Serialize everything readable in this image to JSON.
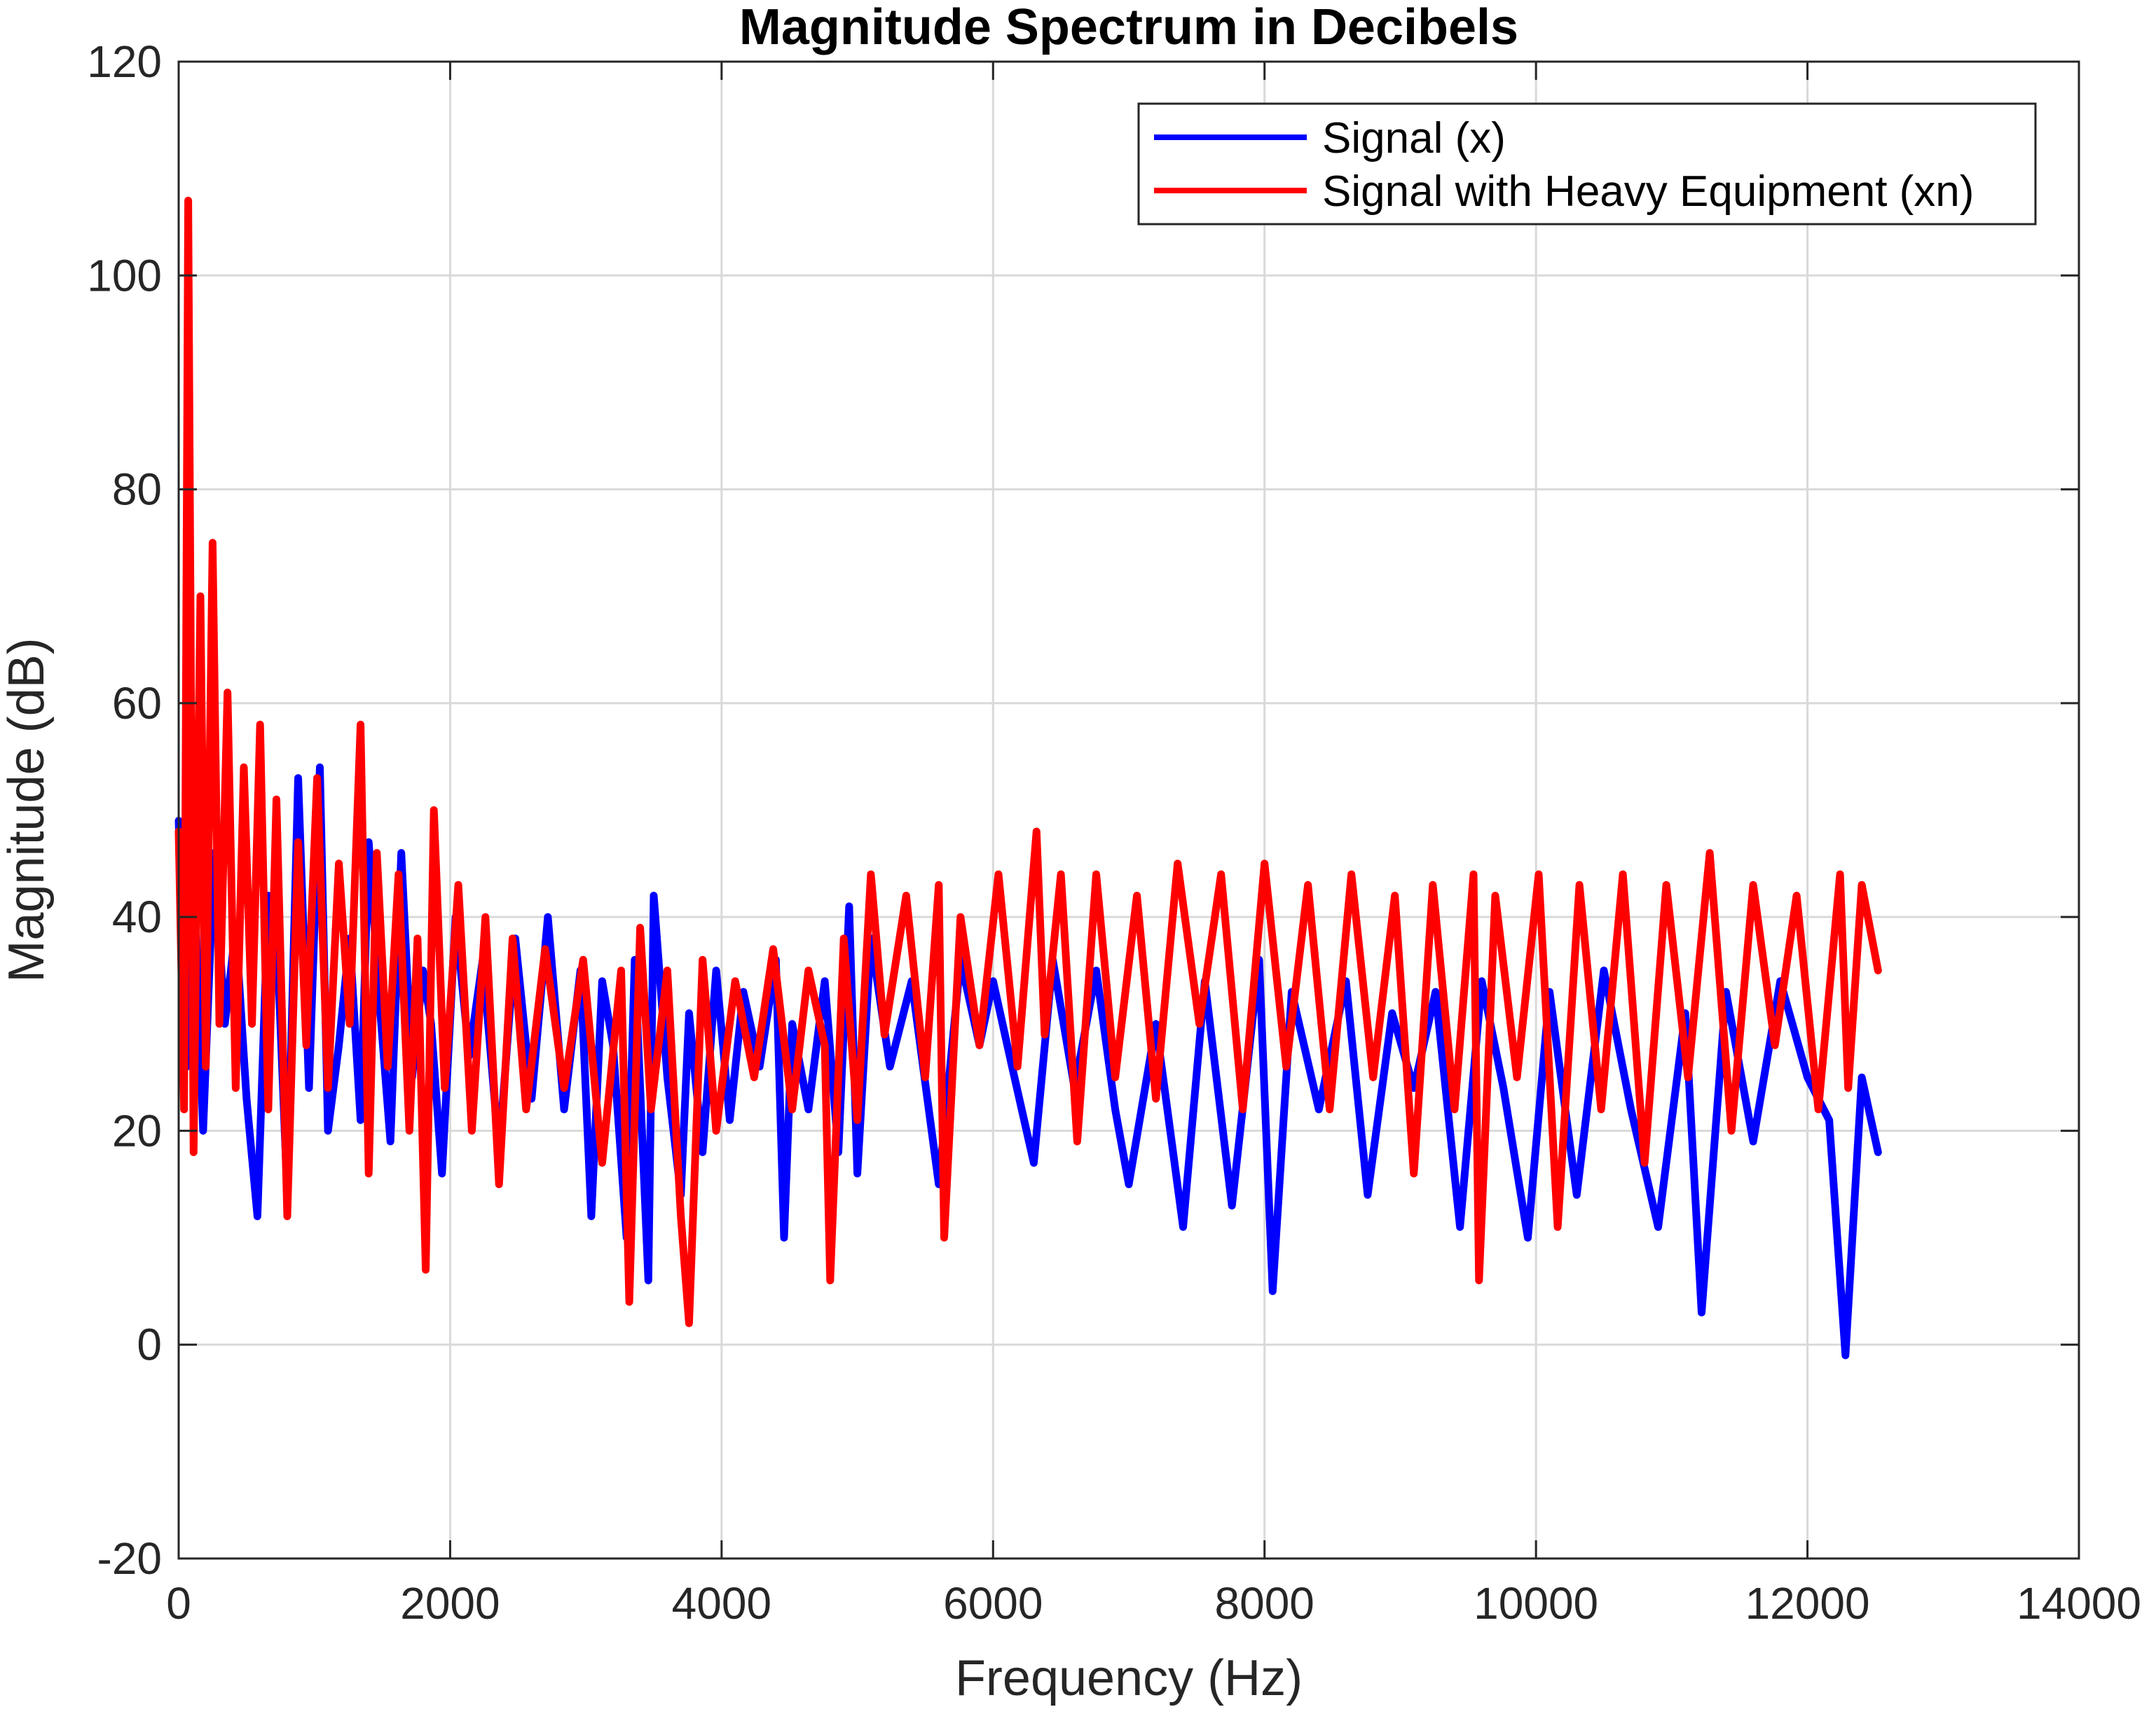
{
  "chart_data": {
    "type": "line",
    "title": "Magnitude Spectrum in Decibels",
    "xlabel": "Frequency (Hz)",
    "ylabel": "Magnitude (dB)",
    "xlim": [
      0,
      14000
    ],
    "ylim": [
      -20,
      120
    ],
    "x_ticks": [
      "0",
      "2000",
      "4000",
      "6000",
      "8000",
      "10000",
      "12000",
      "14000"
    ],
    "y_ticks": [
      "-20",
      "0",
      "20",
      "40",
      "60",
      "80",
      "100",
      "120"
    ],
    "grid": true,
    "legend_position": "top-right",
    "series": [
      {
        "name": "Signal (x)",
        "color": "#0000ff",
        "x": [
          0,
          60,
          120,
          180,
          260,
          340,
          420,
          500,
          580,
          660,
          740,
          800,
          880,
          960,
          1040,
          1100,
          1180,
          1260,
          1340,
          1400,
          1480,
          1560,
          1640,
          1720,
          1800,
          1860,
          1940,
          2040,
          2140,
          2240,
          2360,
          2480,
          2600,
          2720,
          2840,
          2960,
          3040,
          3120,
          3200,
          3300,
          3360,
          3460,
          3500,
          3600,
          3700,
          3760,
          3860,
          3960,
          4060,
          4160,
          4280,
          4400,
          4460,
          4520,
          4640,
          4760,
          4860,
          4940,
          5000,
          5100,
          5240,
          5400,
          5600,
          5760,
          5900,
          6000,
          6140,
          6300,
          6440,
          6600,
          6760,
          6900,
          7000,
          7200,
          7400,
          7560,
          7760,
          7960,
          8060,
          8200,
          8400,
          8600,
          8760,
          8940,
          9100,
          9260,
          9440,
          9600,
          9760,
          9940,
          10100,
          10300,
          10500,
          10700,
          10900,
          11100,
          11220,
          11400,
          11600,
          11800,
          12000,
          12160,
          12280,
          12400,
          12520
        ],
        "y": [
          49,
          26,
          42,
          20,
          46,
          30,
          39,
          23,
          12,
          42,
          33,
          14,
          53,
          24,
          54,
          20,
          28,
          38,
          21,
          47,
          32,
          19,
          46,
          25,
          35,
          30,
          16,
          40,
          27,
          36,
          18,
          38,
          23,
          40,
          22,
          35,
          12,
          34,
          28,
          10,
          36,
          6,
          42,
          25,
          14,
          31,
          18,
          35,
          21,
          33,
          26,
          36,
          10,
          30,
          22,
          34,
          18,
          41,
          16,
          38,
          26,
          34,
          15,
          36,
          28,
          34,
          26,
          17,
          36,
          24,
          35,
          22,
          15,
          30,
          11,
          34,
          13,
          36,
          5,
          33,
          22,
          34,
          14,
          31,
          24,
          33,
          11,
          34,
          24,
          10,
          33,
          14,
          35,
          22,
          11,
          31,
          3,
          33,
          19,
          34,
          25,
          21,
          -1,
          25,
          18
        ]
      },
      {
        "name": "Signal with Heavy Equipment (xn)",
        "color": "#ff0000",
        "x": [
          0,
          40,
          70,
          110,
          160,
          200,
          250,
          300,
          360,
          420,
          480,
          540,
          600,
          660,
          720,
          800,
          880,
          940,
          1020,
          1100,
          1180,
          1260,
          1340,
          1400,
          1460,
          1540,
          1620,
          1700,
          1760,
          1820,
          1880,
          1960,
          2060,
          2160,
          2260,
          2360,
          2460,
          2560,
          2700,
          2840,
          2980,
          3120,
          3260,
          3320,
          3400,
          3480,
          3600,
          3700,
          3760,
          3860,
          3960,
          4100,
          4240,
          4380,
          4520,
          4640,
          4760,
          4800,
          4900,
          5000,
          5100,
          5200,
          5360,
          5500,
          5600,
          5640,
          5760,
          5900,
          6040,
          6180,
          6320,
          6380,
          6500,
          6620,
          6760,
          6900,
          7060,
          7200,
          7360,
          7520,
          7680,
          7840,
          8000,
          8160,
          8320,
          8480,
          8640,
          8800,
          8960,
          9100,
          9240,
          9400,
          9540,
          9580,
          9700,
          9860,
          10020,
          10160,
          10320,
          10480,
          10640,
          10800,
          10960,
          11120,
          11280,
          11440,
          11600,
          11760,
          11920,
          12080,
          12240,
          12300,
          12400,
          12520
        ],
        "y": [
          48,
          22,
          107,
          18,
          70,
          26,
          75,
          30,
          61,
          24,
          54,
          30,
          58,
          22,
          51,
          12,
          47,
          28,
          53,
          24,
          45,
          30,
          58,
          16,
          46,
          26,
          44,
          20,
          38,
          7,
          50,
          24,
          43,
          20,
          40,
          15,
          38,
          22,
          37,
          24,
          36,
          17,
          35,
          4,
          39,
          22,
          35,
          12,
          2,
          36,
          20,
          34,
          25,
          37,
          22,
          35,
          28,
          6,
          38,
          21,
          44,
          29,
          42,
          25,
          43,
          10,
          40,
          28,
          44,
          26,
          48,
          29,
          44,
          19,
          44,
          25,
          42,
          23,
          45,
          30,
          44,
          22,
          45,
          26,
          43,
          22,
          44,
          25,
          42,
          16,
          43,
          22,
          44,
          6,
          42,
          25,
          44,
          11,
          43,
          22,
          44,
          17,
          43,
          25,
          46,
          20,
          43,
          28,
          42,
          22,
          44,
          24,
          43,
          35
        ]
      }
    ]
  }
}
